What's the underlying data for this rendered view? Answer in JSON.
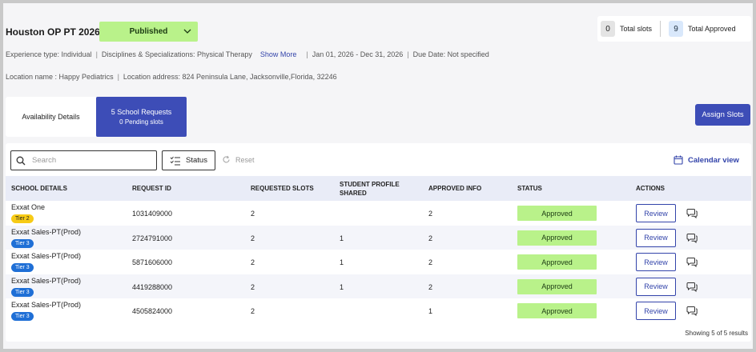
{
  "header": {
    "title": "Houston OP PT 2026",
    "status": "Published",
    "total_slots_value": "0",
    "total_slots_label": "Total slots",
    "total_approved_value": "9",
    "total_approved_label": "Total Approved"
  },
  "meta": {
    "experience_type": "Experience type:  Individual",
    "disciplines": "Disciplines & Specializations:  Physical Therapy",
    "show_more": "Show More",
    "date_range": "Jan 01, 2026  -  Dec 31, 2026",
    "due_date": "Due Date: Not specified",
    "location_name": "Location name : Happy Pediatrics",
    "location_address": "Location address: 824 Peninsula Lane, Jacksonville,Florida, 32246"
  },
  "tabs": {
    "availability": "Availability Details",
    "requests": "5 School Requests",
    "pending": "0 Pending slots"
  },
  "assign_slots": "Assign Slots",
  "toolbar": {
    "search_placeholder": "Search",
    "status": "Status",
    "reset": "Reset",
    "calendar_view": "Calendar view"
  },
  "table": {
    "columns": {
      "school": "SCHOOL DETAILS",
      "request_id": "REQUEST ID",
      "requested": "REQUESTED SLOTS",
      "student_profile_1": "STUDENT PROFILE",
      "student_profile_2": "SHARED",
      "approved_info": "APPROVED INFO",
      "status": "STATUS",
      "actions": "ACTIONS"
    },
    "rows": [
      {
        "school": "Exxat One",
        "tier": "Tier 2",
        "request_id": "1031409000",
        "requested": "2",
        "shared": "",
        "approved": "2",
        "status": "Approved",
        "action": "Review"
      },
      {
        "school": "Exxat Sales-PT(Prod)",
        "tier": "Tier 3",
        "request_id": "2724791000",
        "requested": "2",
        "shared": "1",
        "approved": "2",
        "status": "Approved",
        "action": "Review"
      },
      {
        "school": "Exxat Sales-PT(Prod)",
        "tier": "Tier 3",
        "request_id": "5871606000",
        "requested": "2",
        "shared": "1",
        "approved": "2",
        "status": "Approved",
        "action": "Review"
      },
      {
        "school": "Exxat Sales-PT(Prod)",
        "tier": "Tier 3",
        "request_id": "4419288000",
        "requested": "2",
        "shared": "1",
        "approved": "2",
        "status": "Approved",
        "action": "Review"
      },
      {
        "school": "Exxat Sales-PT(Prod)",
        "tier": "Tier 3",
        "request_id": "4505824000",
        "requested": "2",
        "shared": "",
        "approved": "1",
        "status": "Approved",
        "action": "Review"
      }
    ]
  },
  "footer": "Showing 5 of 5 results",
  "colors": {
    "accent": "#3d4db7",
    "approved_bg": "#b9f28a",
    "tier2": "#f7cb16",
    "tier3": "#1f6fd6"
  }
}
